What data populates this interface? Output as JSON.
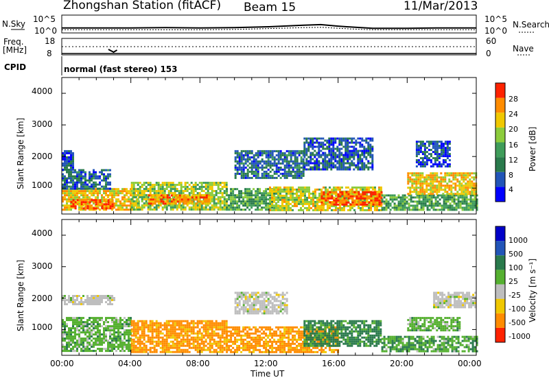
{
  "header": {
    "station": "Zhongshan Station (fitACF)",
    "beam": "Beam 15",
    "date": "11/Mar/2013"
  },
  "sky_panel": {
    "left_label": "N.Sky",
    "left_ticks": [
      "10^5",
      "10^0"
    ],
    "right_ticks": [
      "10^5",
      "10^0"
    ],
    "right_label": "N.Search"
  },
  "freq_panel": {
    "left_label_1": "Freq.",
    "left_label_2": "[MHz]",
    "left_ticks": [
      "18",
      "8"
    ],
    "right_ticks": [
      "60",
      "0"
    ],
    "right_label": "Nave"
  },
  "cpid_panel": {
    "label": "CPID",
    "value": "normal (fast stereo) 153"
  },
  "power_panel": {
    "ylabel": "Slant Range [km]",
    "yticks": [
      "4000",
      "3000",
      "2000",
      "1000"
    ],
    "colorbar_label": "Power [dB]",
    "colorbar_ticks": [
      "28",
      "24",
      "20",
      "16",
      "12",
      "8",
      "4"
    ]
  },
  "velocity_panel": {
    "ylabel": "Slant Range [km]",
    "yticks": [
      "4000",
      "3000",
      "2000",
      "1000"
    ],
    "colorbar_label": "Velocity [m s⁻¹]",
    "colorbar_ticks": [
      "1000",
      "500",
      "100",
      "25",
      "-25",
      "-100",
      "-500",
      "-1000"
    ]
  },
  "x_axis": {
    "label": "Time UT",
    "ticks": [
      "00:00",
      "04:00",
      "08:00",
      "12:00",
      "16:00",
      "20:00",
      "00:00"
    ]
  },
  "colors": {
    "power_scale": [
      "#0000ff",
      "#2255b8",
      "#2a7a4c",
      "#3f9c5a",
      "#8ccc3c",
      "#f0c800",
      "#ff8c00",
      "#ff2200"
    ],
    "velocity_scale": [
      "#0000c8",
      "#2255b8",
      "#2a7a4c",
      "#55b030",
      "#bebebe",
      "#f0c800",
      "#ff8c00",
      "#ff2200"
    ]
  },
  "chart_data": [
    {
      "type": "line",
      "panel": "N.Sky / N.Search",
      "x_range": [
        "00:00",
        "24:00"
      ],
      "ylim_log": [
        0,
        5
      ],
      "series": [
        {
          "name": "N.Sky",
          "x": [
            0,
            2,
            4,
            6,
            8,
            10,
            12,
            14,
            15,
            16,
            17,
            18,
            20,
            22,
            24
          ],
          "values": [
            1.2,
            1.2,
            1.2,
            1.3,
            1.2,
            1.3,
            1.6,
            2.1,
            2.3,
            1.8,
            1.4,
            1.1,
            1.1,
            1.2,
            1.2
          ]
        },
        {
          "name": "N.Search",
          "x": [
            0,
            2,
            4,
            6,
            8,
            10,
            12,
            14,
            15,
            16,
            17,
            18,
            20,
            22,
            24
          ],
          "values": [
            0.6,
            0.6,
            0.6,
            0.6,
            0.6,
            0.7,
            1.0,
            1.3,
            1.4,
            1.1,
            0.8,
            0.6,
            0.6,
            0.6,
            0.6
          ]
        }
      ]
    },
    {
      "type": "line",
      "panel": "Freq. / Nave",
      "x_range": [
        "00:00",
        "24:00"
      ],
      "series": [
        {
          "name": "Freq.",
          "x": [
            0,
            24
          ],
          "values": [
            8,
            8
          ]
        },
        {
          "name": "Nave",
          "x": [
            0,
            24
          ],
          "values": [
            30,
            30
          ]
        }
      ]
    },
    {
      "type": "heatmap",
      "panel": "Power",
      "x_range_hours": [
        0,
        24
      ],
      "y_range_km": [
        180,
        4500
      ],
      "zlim": [
        0,
        30
      ],
      "regions": [
        {
          "t": [
            0.0,
            4.5
          ],
          "r": [
            300,
            1000
          ],
          "v": 22
        },
        {
          "t": [
            0.5,
            3.0
          ],
          "r": [
            350,
            650
          ],
          "v": 28
        },
        {
          "t": [
            0.0,
            2.8
          ],
          "r": [
            1000,
            1600
          ],
          "v": 8
        },
        {
          "t": [
            0.0,
            0.6
          ],
          "r": [
            1600,
            2200
          ],
          "v": 6
        },
        {
          "t": [
            4.0,
            9.5
          ],
          "r": [
            350,
            1200
          ],
          "v": 18
        },
        {
          "t": [
            5.0,
            8.5
          ],
          "r": [
            500,
            800
          ],
          "v": 26
        },
        {
          "t": [
            9.5,
            12.5
          ],
          "r": [
            300,
            1000
          ],
          "v": 14
        },
        {
          "t": [
            12.0,
            18.5
          ],
          "r": [
            300,
            1050
          ],
          "v": 20
        },
        {
          "t": [
            15.0,
            18.5
          ],
          "r": [
            500,
            900
          ],
          "v": 28
        },
        {
          "t": [
            10.0,
            14.0
          ],
          "r": [
            1300,
            2200
          ],
          "v": 8
        },
        {
          "t": [
            14.0,
            18.0
          ],
          "r": [
            1600,
            2600
          ],
          "v": 7
        },
        {
          "t": [
            18.5,
            24.0
          ],
          "r": [
            300,
            800
          ],
          "v": 14
        },
        {
          "t": [
            20.0,
            24.0
          ],
          "r": [
            800,
            1500
          ],
          "v": 22
        },
        {
          "t": [
            20.5,
            22.5
          ],
          "r": [
            1700,
            2500
          ],
          "v": 6
        }
      ]
    },
    {
      "type": "heatmap",
      "panel": "Velocity",
      "x_range_hours": [
        0,
        24
      ],
      "y_range_km": [
        180,
        4500
      ],
      "zlim": [
        -1000,
        1000
      ],
      "regions": [
        {
          "t": [
            0.0,
            4.0
          ],
          "r": [
            300,
            1400
          ],
          "v": 60
        },
        {
          "t": [
            0.0,
            3.0
          ],
          "r": [
            1800,
            2100
          ],
          "v": 0
        },
        {
          "t": [
            4.0,
            9.5
          ],
          "r": [
            300,
            1300
          ],
          "v": -150
        },
        {
          "t": [
            9.5,
            16.0
          ],
          "r": [
            300,
            1100
          ],
          "v": -150
        },
        {
          "t": [
            14.0,
            18.5
          ],
          "r": [
            500,
            1300
          ],
          "v": 150
        },
        {
          "t": [
            10.0,
            13.0
          ],
          "r": [
            1500,
            2200
          ],
          "v": 0
        },
        {
          "t": [
            18.5,
            24.0
          ],
          "r": [
            300,
            800
          ],
          "v": 80
        },
        {
          "t": [
            20.0,
            23.0
          ],
          "r": [
            1000,
            1400
          ],
          "v": 60
        },
        {
          "t": [
            21.5,
            24.0
          ],
          "r": [
            1700,
            2200
          ],
          "v": 0
        }
      ]
    }
  ]
}
